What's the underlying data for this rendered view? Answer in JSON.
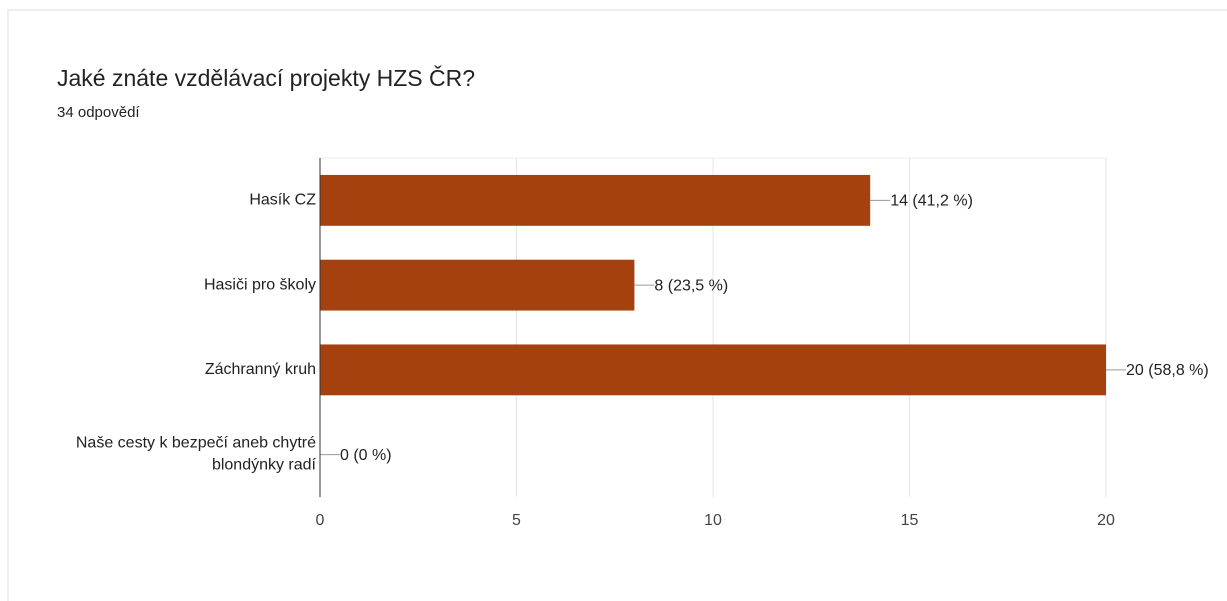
{
  "chart_data": {
    "type": "bar",
    "orientation": "horizontal",
    "title": "Jaké znáte vzdělávací projekty HZS ČR?",
    "subtitle": "34 odpovědí",
    "categories": [
      "Hasík CZ",
      "Hasiči pro školy",
      "Záchranný kruh",
      "Naše cesty k bezpečí aneb chytré blondýnky radí"
    ],
    "values": [
      14,
      8,
      20,
      0
    ],
    "value_labels": [
      "14 (41,2 %)",
      "8 (23,5 %)",
      "20 (58,8 %)",
      "0 (0 %)"
    ],
    "color": "#a5400f",
    "xlim": [
      0,
      20
    ],
    "xticks": [
      0,
      5,
      10,
      15,
      20
    ],
    "grid": true
  }
}
